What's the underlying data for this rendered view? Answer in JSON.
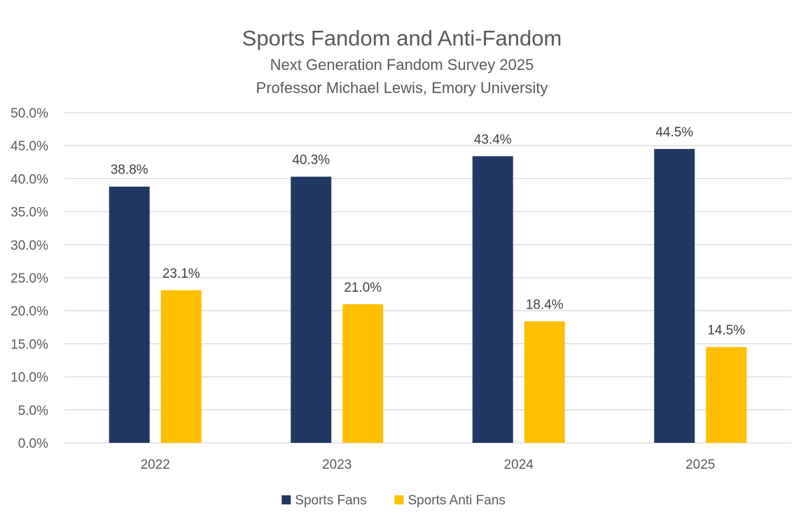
{
  "chart_data": {
    "type": "bar",
    "title": "Sports Fandom and Anti-Fandom",
    "subtitle_lines": [
      "Next Generation Fandom Survey 2025",
      "Professor Michael Lewis, Emory University"
    ],
    "categories": [
      "2022",
      "2023",
      "2024",
      "2025"
    ],
    "series": [
      {
        "name": "Sports Fans",
        "color": "#203864",
        "values": [
          38.8,
          40.3,
          43.4,
          44.5
        ],
        "labels": [
          "38.8%",
          "40.3%",
          "43.4%",
          "44.5%"
        ]
      },
      {
        "name": "Sports Anti Fans",
        "color": "#FFC000",
        "values": [
          23.1,
          21.0,
          18.4,
          14.5
        ],
        "labels": [
          "23.1%",
          "21.0%",
          "18.4%",
          "14.5%"
        ]
      }
    ],
    "ylim": [
      0,
      50
    ],
    "y_ticks": [
      0,
      5,
      10,
      15,
      20,
      25,
      30,
      35,
      40,
      45,
      50
    ],
    "y_tick_labels": [
      "0.0%",
      "5.0%",
      "10.0%",
      "15.0%",
      "20.0%",
      "25.0%",
      "30.0%",
      "35.0%",
      "40.0%",
      "45.0%",
      "50.0%"
    ],
    "grid": true,
    "legend_position": "bottom"
  }
}
